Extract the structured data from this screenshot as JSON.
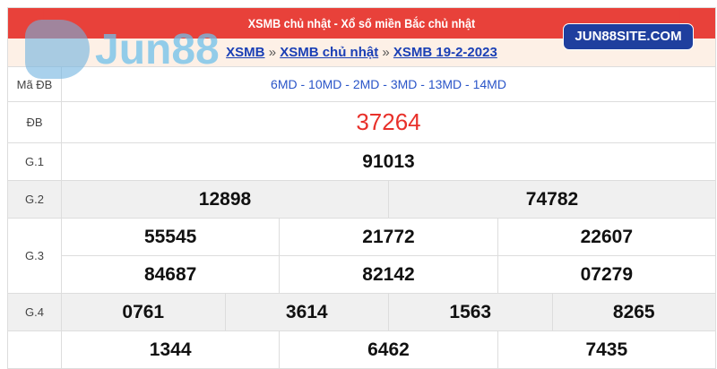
{
  "header": {
    "title": "XSMB chủ nhật - Xổ số miền Bắc chủ nhật"
  },
  "breadcrumb": {
    "items": [
      "XSMB",
      "XSMB chủ nhật",
      "XSMB 19-2-2023"
    ],
    "sep": "»"
  },
  "watermark": {
    "logo_text": "Jun88",
    "badge": "JUN88SITE.COM"
  },
  "colors": {
    "header": "#e8413a",
    "special": "#e8302a",
    "link": "#1a3fb5",
    "badge": "#1f3f9e"
  },
  "rows": {
    "ma_db": {
      "label": "Mã ĐB",
      "value": "6MD - 10MD - 2MD - 3MD - 13MD - 14MD"
    },
    "db": {
      "label": "ĐB",
      "value": "37264"
    },
    "g1": {
      "label": "G.1",
      "values": [
        "91013"
      ]
    },
    "g2": {
      "label": "G.2",
      "values": [
        "12898",
        "74782"
      ]
    },
    "g3": {
      "label": "G.3",
      "values": [
        "55545",
        "21772",
        "22607",
        "84687",
        "82142",
        "07279"
      ]
    },
    "g4": {
      "label": "G.4",
      "values": [
        "0761",
        "3614",
        "1563",
        "8265"
      ]
    },
    "g5": {
      "label": "",
      "values": [
        "1344",
        "6462",
        "7435"
      ]
    }
  }
}
